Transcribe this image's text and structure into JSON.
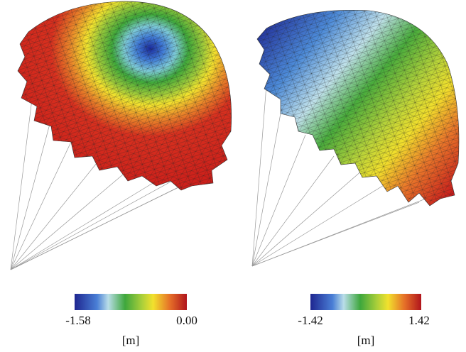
{
  "panels": [
    {
      "colorbar": {
        "min_label": "-1.58",
        "max_label": "0.00",
        "unit": "[m]"
      }
    },
    {
      "colorbar": {
        "min_label": "-1.42",
        "max_label": "1.42",
        "unit": "[m]"
      }
    }
  ]
}
